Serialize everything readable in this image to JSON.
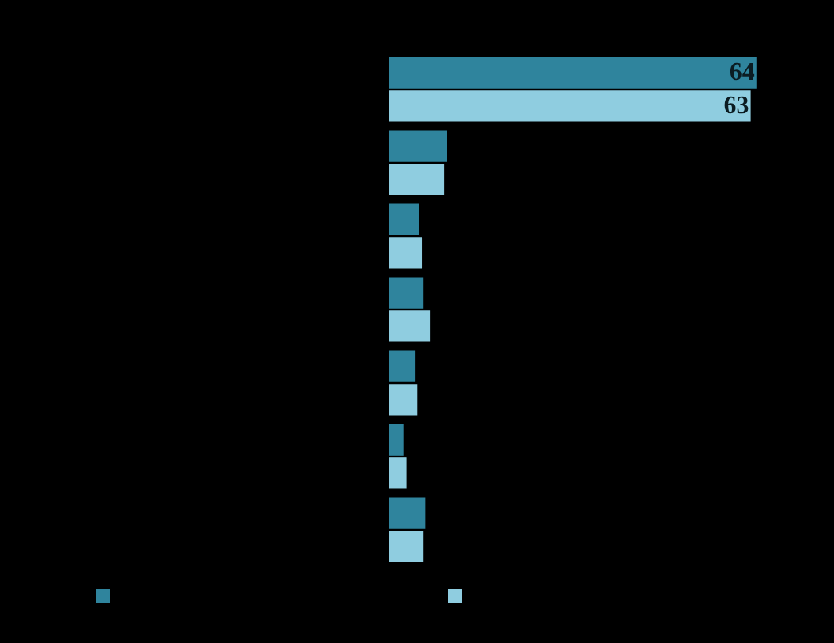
{
  "chart_data": {
    "type": "bar",
    "orientation": "horizontal",
    "categories": [
      null,
      null,
      null,
      null,
      null,
      null,
      null
    ],
    "series": [
      {
        "color": "#2f849d",
        "values": [
          64,
          10,
          5.2,
          6.0,
          4.6,
          2.6,
          6.3
        ],
        "value_labels": [
          "64",
          null,
          null,
          null,
          null,
          null,
          null
        ]
      },
      {
        "color": "#8fcde0",
        "values": [
          63,
          9.6,
          5.7,
          7.1,
          4.9,
          3.0,
          6.0
        ],
        "value_labels": [
          "63",
          null,
          null,
          null,
          null,
          null,
          null
        ]
      }
    ],
    "tick_labels": false
  }
}
